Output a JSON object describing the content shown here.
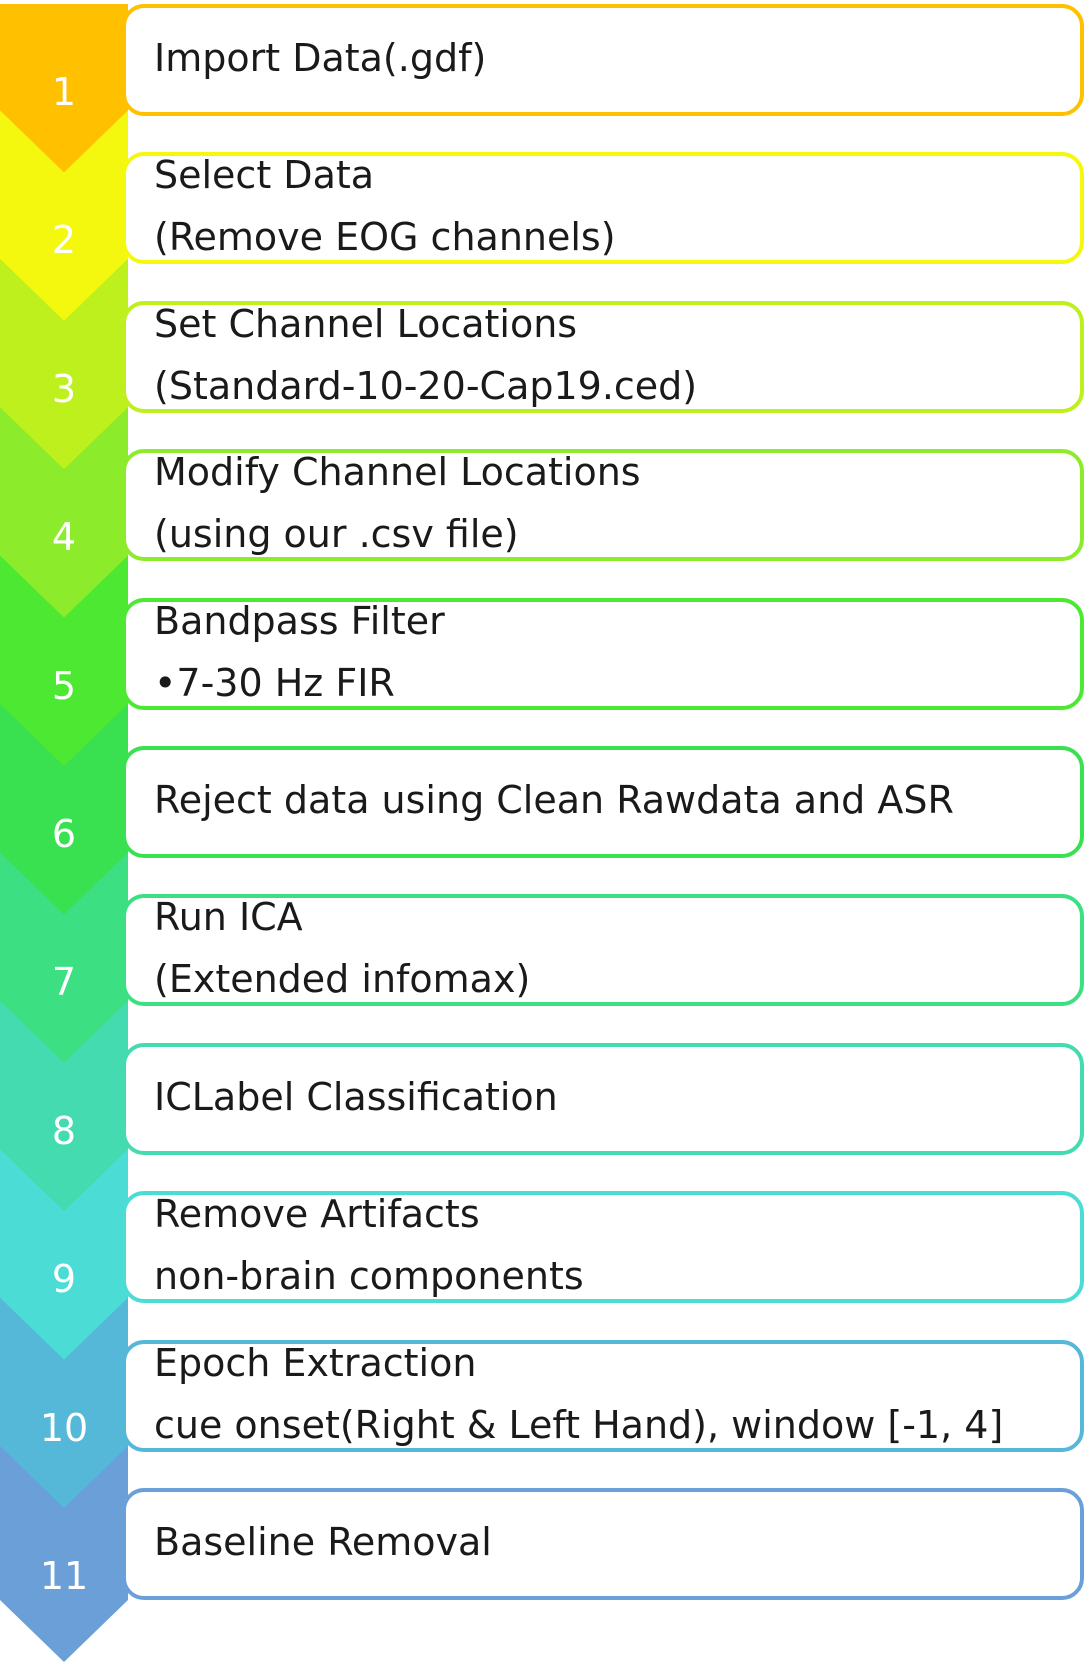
{
  "steps": [
    {
      "number": "1",
      "lines": [
        "Import Data(.gdf)"
      ],
      "color": "#FFC000"
    },
    {
      "number": "2",
      "lines": [
        "Select Data",
        "(Remove EOG channels)"
      ],
      "color": "#F4F80E"
    },
    {
      "number": "3",
      "lines": [
        "Set Channel Locations",
        "(Standard-10-20-Cap19.ced)"
      ],
      "color": "#BDF01D"
    },
    {
      "number": "4",
      "lines": [
        "Modify Channel Locations",
        "(using our .csv file)"
      ],
      "color": "#8CEB2B"
    },
    {
      "number": "5",
      "lines": [
        "Bandpass Filter",
        "•7-30 Hz FIR"
      ],
      "color": "#4CE832"
    },
    {
      "number": "6",
      "lines": [
        "Reject data using Clean Rawdata and ASR"
      ],
      "color": "#39E050"
    },
    {
      "number": "7",
      "lines": [
        "Run ICA",
        "(Extended infomax)"
      ],
      "color": "#3CDF82"
    },
    {
      "number": "8",
      "lines": [
        "ICLabel Classification"
      ],
      "color": "#44DBB0"
    },
    {
      "number": "9",
      "lines": [
        "Remove Artifacts",
        "non-brain components"
      ],
      "color": "#4CDCD6"
    },
    {
      "number": "10",
      "lines": [
        "Epoch Extraction",
        "cue onset(Right & Left Hand), window [-1, 4]"
      ],
      "color": "#55B8D9"
    },
    {
      "number": "11",
      "lines": [
        "Baseline Removal"
      ],
      "color": "#6A9FD8"
    }
  ]
}
